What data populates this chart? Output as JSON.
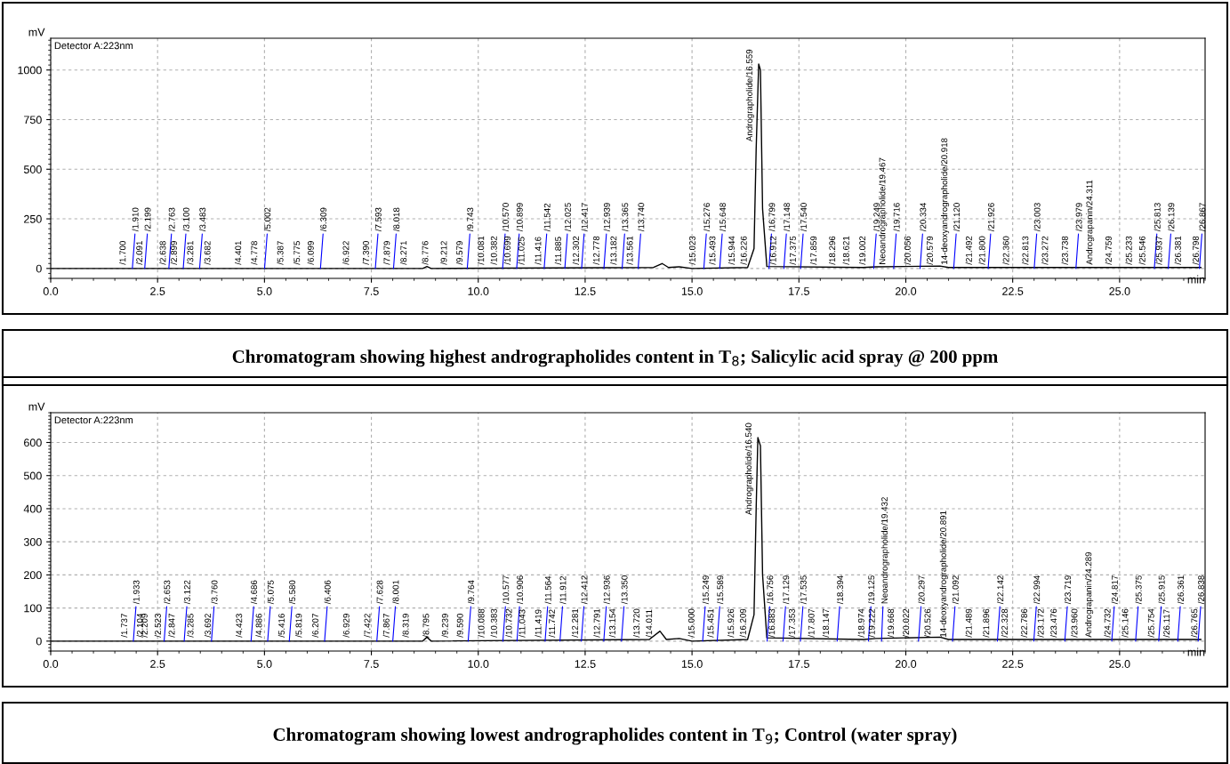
{
  "chart_data": [
    {
      "type": "line",
      "title": "Chromatogram showing highest andrographolides content in T$_{8}$; Salicylic acid spray @ 200 ppm",
      "xlabel": "min",
      "ylabel": "mV",
      "xlim": [
        0,
        27
      ],
      "xticks": [
        {
          "value": 0,
          "label": "0.0"
        },
        {
          "value": 2.5,
          "label": "2.5"
        },
        {
          "value": 5,
          "label": "5.0"
        },
        {
          "value": 7.5,
          "label": "7.5"
        },
        {
          "value": 10,
          "label": "10.0"
        },
        {
          "value": 12.5,
          "label": "12.5"
        },
        {
          "value": 15,
          "label": "15.0"
        },
        {
          "value": 17.5,
          "label": "17.5"
        },
        {
          "value": 20,
          "label": "20.0"
        },
        {
          "value": 22.5,
          "label": "22.5"
        },
        {
          "value": 25,
          "label": "25.0"
        }
      ],
      "ylim": [
        -50,
        1160
      ],
      "yticks": [
        0,
        250,
        500,
        750,
        1000
      ],
      "grid": true,
      "legend": false,
      "marker": "none",
      "line_style": "solid",
      "series": [
        {
          "color": "#000000",
          "x": [
            0,
            1.5,
            8.7,
            8.8,
            8.9,
            14.1,
            14.3,
            14.45,
            14.7,
            15.0,
            16.3,
            16.45,
            16.5,
            16.559,
            16.6,
            16.65,
            16.75,
            19.0,
            19.3,
            20.8,
            21.0,
            26.9
          ],
          "values": [
            0,
            0,
            0,
            10,
            0,
            5,
            25,
            5,
            8,
            0,
            5,
            100,
            600,
            1030,
            1000,
            300,
            10,
            5,
            8,
            12,
            5,
            5
          ]
        }
      ],
      "annotations": [
        "Detector A:223nm",
        {
          "text": "/1.700",
          "x": 1.7,
          "y": 0
        },
        {
          "text": "/1.910",
          "x": 1.91,
          "y": 0
        },
        {
          "text": "/2.091",
          "x": 2.091,
          "y": 0
        },
        {
          "text": "/2.199",
          "x": 2.199,
          "y": 0
        },
        {
          "text": "/2.638",
          "x": 2.638,
          "y": 0
        },
        {
          "text": "/2.763",
          "x": 2.763,
          "y": 0
        },
        {
          "text": "/2.899",
          "x": 2.899,
          "y": 0
        },
        {
          "text": "/3.100",
          "x": 3.1,
          "y": 0
        },
        {
          "text": "/3.281",
          "x": 3.281,
          "y": 0
        },
        {
          "text": "/3.483",
          "x": 3.483,
          "y": 0
        },
        {
          "text": "/3.682",
          "x": 3.682,
          "y": 0
        },
        {
          "text": "/4.401",
          "x": 4.401,
          "y": 0
        },
        {
          "text": "/4.778",
          "x": 4.778,
          "y": 0
        },
        {
          "text": "/5.002",
          "x": 5.002,
          "y": 0
        },
        {
          "text": "/5.387",
          "x": 5.387,
          "y": 0
        },
        {
          "text": "/5.775",
          "x": 5.775,
          "y": 0
        },
        {
          "text": "/6.099",
          "x": 6.099,
          "y": 0
        },
        {
          "text": "/6.309",
          "x": 6.309,
          "y": 0
        },
        {
          "text": "/6.922",
          "x": 6.922,
          "y": 0
        },
        {
          "text": "/7.390",
          "x": 7.39,
          "y": 0
        },
        {
          "text": "/7.593",
          "x": 7.593,
          "y": 0
        },
        {
          "text": "/7.879",
          "x": 7.879,
          "y": 0
        },
        {
          "text": "/8.018",
          "x": 8.018,
          "y": 0
        },
        {
          "text": "/8.271",
          "x": 8.271,
          "y": 0
        },
        {
          "text": "/8.776",
          "x": 8.776,
          "y": 0
        },
        {
          "text": "/9.212",
          "x": 9.212,
          "y": 0
        },
        {
          "text": "/9.579",
          "x": 9.579,
          "y": 0
        },
        {
          "text": "/9.743",
          "x": 9.743,
          "y": 0
        },
        {
          "text": "/10.081",
          "x": 10.081,
          "y": 0
        },
        {
          "text": "/10.382",
          "x": 10.382,
          "y": 0
        },
        {
          "text": "/10.570",
          "x": 10.57,
          "y": 0
        },
        {
          "text": "/10.699",
          "x": 10.699,
          "y": 0
        },
        {
          "text": "/10.899",
          "x": 10.899,
          "y": 0
        },
        {
          "text": "/11.025",
          "x": 11.025,
          "y": 0
        },
        {
          "text": "/11.416",
          "x": 11.416,
          "y": 0
        },
        {
          "text": "/11.542",
          "x": 11.542,
          "y": 0
        },
        {
          "text": "/11.885",
          "x": 11.885,
          "y": 0
        },
        {
          "text": "/12.025",
          "x": 12.025,
          "y": 0
        },
        {
          "text": "/12.302",
          "x": 12.302,
          "y": 0
        },
        {
          "text": "/12.417",
          "x": 12.417,
          "y": 0
        },
        {
          "text": "/12.778",
          "x": 12.778,
          "y": 0
        },
        {
          "text": "/12.939",
          "x": 12.939,
          "y": 0
        },
        {
          "text": "/13.182",
          "x": 13.182,
          "y": 0
        },
        {
          "text": "/13.365",
          "x": 13.365,
          "y": 0
        },
        {
          "text": "/13.561",
          "x": 13.561,
          "y": 0
        },
        {
          "text": "/13.740",
          "x": 13.74,
          "y": 0
        },
        {
          "text": "/15.023",
          "x": 15.023,
          "y": 0
        },
        {
          "text": "/15.276",
          "x": 15.276,
          "y": 0
        },
        {
          "text": "/15.493",
          "x": 15.493,
          "y": 0
        },
        {
          "text": "/15.648",
          "x": 15.648,
          "y": 0
        },
        {
          "text": "/15.944",
          "x": 15.944,
          "y": 0
        },
        {
          "text": "/16.226",
          "x": 16.226,
          "y": 0
        },
        {
          "text": "Andrographolide/16.559",
          "x": 16.559,
          "y": 1030
        },
        {
          "text": "/16.799",
          "x": 16.799,
          "y": 0
        },
        {
          "text": "/16.912",
          "x": 16.912,
          "y": 0
        },
        {
          "text": "/17.148",
          "x": 17.148,
          "y": 0
        },
        {
          "text": "/17.375",
          "x": 17.375,
          "y": 0
        },
        {
          "text": "/17.540",
          "x": 17.54,
          "y": 0
        },
        {
          "text": "/17.859",
          "x": 17.859,
          "y": 0
        },
        {
          "text": "/18.296",
          "x": 18.296,
          "y": 0
        },
        {
          "text": "/18.621",
          "x": 18.621,
          "y": 0
        },
        {
          "text": "/19.002",
          "x": 19.002,
          "y": 0
        },
        {
          "text": "/19.249",
          "x": 19.249,
          "y": 0
        },
        {
          "text": "Neoandrographolide/19.467",
          "x": 19.467,
          "y": 0
        },
        {
          "text": "/19.716",
          "x": 19.716,
          "y": 0
        },
        {
          "text": "/20.056",
          "x": 20.056,
          "y": 0
        },
        {
          "text": "/20.334",
          "x": 20.334,
          "y": 0
        },
        {
          "text": "/20.579",
          "x": 20.579,
          "y": 0
        },
        {
          "text": "14-deoxyandrographolide/20.918",
          "x": 20.918,
          "y": 0
        },
        {
          "text": "/21.120",
          "x": 21.12,
          "y": 0
        },
        {
          "text": "/21.492",
          "x": 21.492,
          "y": 0
        },
        {
          "text": "/21.800",
          "x": 21.8,
          "y": 0
        },
        {
          "text": "/21.926",
          "x": 21.926,
          "y": 0
        },
        {
          "text": "/22.360",
          "x": 22.36,
          "y": 0
        },
        {
          "text": "/22.813",
          "x": 22.813,
          "y": 0
        },
        {
          "text": "/23.003",
          "x": 23.003,
          "y": 0
        },
        {
          "text": "/23.272",
          "x": 23.272,
          "y": 0
        },
        {
          "text": "/23.738",
          "x": 23.738,
          "y": 0
        },
        {
          "text": "/23.979",
          "x": 23.979,
          "y": 0
        },
        {
          "text": "Andrograpanin/24.311",
          "x": 24.311,
          "y": 0
        },
        {
          "text": "/24.759",
          "x": 24.759,
          "y": 0
        },
        {
          "text": "/25.233",
          "x": 25.233,
          "y": 0
        },
        {
          "text": "/25.546",
          "x": 25.546,
          "y": 0
        },
        {
          "text": "/25.813",
          "x": 25.813,
          "y": 0
        },
        {
          "text": "/25.937",
          "x": 25.937,
          "y": 0
        },
        {
          "text": "/26.139",
          "x": 26.139,
          "y": 0
        },
        {
          "text": "/26.381",
          "x": 26.381,
          "y": 0
        },
        {
          "text": "/26.798",
          "x": 26.798,
          "y": 0
        },
        {
          "text": "/26.867",
          "x": 26.867,
          "y": 0
        }
      ]
    },
    {
      "type": "line",
      "title": "Chromatogram showing lowest andrographolides content in T$_{9}$; Control (water spray)",
      "xlabel": "min",
      "ylabel": "mV",
      "xlim": [
        0,
        27
      ],
      "xticks": [
        {
          "value": 0,
          "label": "0.0"
        },
        {
          "value": 2.5,
          "label": "2.5"
        },
        {
          "value": 5,
          "label": "5.0"
        },
        {
          "value": 7.5,
          "label": "7.5"
        },
        {
          "value": 10,
          "label": "10.0"
        },
        {
          "value": 12.5,
          "label": "12.5"
        },
        {
          "value": 15,
          "label": "15.0"
        },
        {
          "value": 17.5,
          "label": "17.5"
        },
        {
          "value": 20,
          "label": "20.0"
        },
        {
          "value": 22.5,
          "label": "22.5"
        },
        {
          "value": 25,
          "label": "25.0"
        }
      ],
      "ylim": [
        -30,
        690
      ],
      "yticks": [
        0,
        100,
        200,
        300,
        400,
        500,
        600
      ],
      "grid": true,
      "legend": false,
      "marker": "none",
      "line_style": "solid",
      "series": [
        {
          "color": "#000000",
          "x": [
            0,
            1.5,
            8.7,
            8.8,
            8.9,
            14.0,
            14.25,
            14.4,
            14.7,
            15.0,
            16.3,
            16.45,
            16.5,
            16.54,
            16.6,
            16.65,
            16.75,
            19.0,
            19.3,
            20.8,
            21.0,
            26.9
          ],
          "values": [
            0,
            0,
            0,
            12,
            0,
            5,
            30,
            5,
            8,
            0,
            5,
            80,
            400,
            615,
            590,
            200,
            10,
            5,
            8,
            12,
            5,
            5
          ]
        }
      ],
      "annotations": [
        "Detector A:223nm",
        {
          "text": "/1.737",
          "x": 1.737,
          "y": 0
        },
        {
          "text": "/1.933",
          "x": 1.933,
          "y": 0
        },
        {
          "text": "/2.104",
          "x": 2.104,
          "y": 0
        },
        {
          "text": "/2.209",
          "x": 2.209,
          "y": 0
        },
        {
          "text": "/2.523",
          "x": 2.523,
          "y": 0
        },
        {
          "text": "/2.653",
          "x": 2.653,
          "y": 0
        },
        {
          "text": "/2.847",
          "x": 2.847,
          "y": 0
        },
        {
          "text": "/3.122",
          "x": 3.122,
          "y": 0
        },
        {
          "text": "/3.285",
          "x": 3.285,
          "y": 0
        },
        {
          "text": "/3.692",
          "x": 3.692,
          "y": 0
        },
        {
          "text": "/3.760",
          "x": 3.76,
          "y": 0
        },
        {
          "text": "/4.423",
          "x": 4.423,
          "y": 0
        },
        {
          "text": "/4.686",
          "x": 4.686,
          "y": 0
        },
        {
          "text": "/4.886",
          "x": 4.886,
          "y": 0
        },
        {
          "text": "/5.075",
          "x": 5.075,
          "y": 0
        },
        {
          "text": "/5.416",
          "x": 5.416,
          "y": 0
        },
        {
          "text": "/5.580",
          "x": 5.58,
          "y": 0
        },
        {
          "text": "/5.819",
          "x": 5.819,
          "y": 0
        },
        {
          "text": "/6.207",
          "x": 6.207,
          "y": 0
        },
        {
          "text": "/6.406",
          "x": 6.406,
          "y": 0
        },
        {
          "text": "/6.929",
          "x": 6.929,
          "y": 0
        },
        {
          "text": "/7.422",
          "x": 7.422,
          "y": 0
        },
        {
          "text": "/7.628",
          "x": 7.628,
          "y": 0
        },
        {
          "text": "/7.867",
          "x": 7.867,
          "y": 0
        },
        {
          "text": "/8.001",
          "x": 8.001,
          "y": 0
        },
        {
          "text": "/8.319",
          "x": 8.319,
          "y": 0
        },
        {
          "text": "/8.795",
          "x": 8.795,
          "y": 0
        },
        {
          "text": "/9.239",
          "x": 9.239,
          "y": 0
        },
        {
          "text": "/9.590",
          "x": 9.59,
          "y": 0
        },
        {
          "text": "/9.764",
          "x": 9.764,
          "y": 0
        },
        {
          "text": "/10.088",
          "x": 10.088,
          "y": 0
        },
        {
          "text": "/10.383",
          "x": 10.383,
          "y": 0
        },
        {
          "text": "/10.577",
          "x": 10.577,
          "y": 0
        },
        {
          "text": "/10.732",
          "x": 10.732,
          "y": 0
        },
        {
          "text": "/10.906",
          "x": 10.906,
          "y": 0
        },
        {
          "text": "/11.043",
          "x": 11.043,
          "y": 0
        },
        {
          "text": "/11.419",
          "x": 11.419,
          "y": 0
        },
        {
          "text": "/11.564",
          "x": 11.564,
          "y": 0
        },
        {
          "text": "/11.742",
          "x": 11.742,
          "y": 0
        },
        {
          "text": "/11.912",
          "x": 11.912,
          "y": 0
        },
        {
          "text": "/12.281",
          "x": 12.281,
          "y": 0
        },
        {
          "text": "/12.412",
          "x": 12.412,
          "y": 0
        },
        {
          "text": "/12.791",
          "x": 12.791,
          "y": 0
        },
        {
          "text": "/12.936",
          "x": 12.936,
          "y": 0
        },
        {
          "text": "/13.154",
          "x": 13.154,
          "y": 0
        },
        {
          "text": "/13.350",
          "x": 13.35,
          "y": 0
        },
        {
          "text": "/13.720",
          "x": 13.72,
          "y": 0
        },
        {
          "text": "/14.011",
          "x": 14.011,
          "y": 0
        },
        {
          "text": "/15.000",
          "x": 15.0,
          "y": 0
        },
        {
          "text": "/15.249",
          "x": 15.249,
          "y": 0
        },
        {
          "text": "/15.451",
          "x": 15.451,
          "y": 0
        },
        {
          "text": "/15.589",
          "x": 15.589,
          "y": 0
        },
        {
          "text": "/15.926",
          "x": 15.926,
          "y": 0
        },
        {
          "text": "/16.209",
          "x": 16.209,
          "y": 0
        },
        {
          "text": "Andrographolide/16.540",
          "x": 16.54,
          "y": 615
        },
        {
          "text": "/16.756",
          "x": 16.756,
          "y": 0
        },
        {
          "text": "/16.883",
          "x": 16.883,
          "y": 0
        },
        {
          "text": "/17.129",
          "x": 17.129,
          "y": 0
        },
        {
          "text": "/17.353",
          "x": 17.353,
          "y": 0
        },
        {
          "text": "/17.535",
          "x": 17.535,
          "y": 0
        },
        {
          "text": "/17.807",
          "x": 17.807,
          "y": 0
        },
        {
          "text": "/18.147",
          "x": 18.147,
          "y": 0
        },
        {
          "text": "/18.394",
          "x": 18.394,
          "y": 0
        },
        {
          "text": "/18.974",
          "x": 18.974,
          "y": 0
        },
        {
          "text": "/19.125",
          "x": 19.125,
          "y": 0
        },
        {
          "text": "/19.222",
          "x": 19.222,
          "y": 0
        },
        {
          "text": "Neoandrographolide/19.432",
          "x": 19.432,
          "y": 0
        },
        {
          "text": "/19.668",
          "x": 19.668,
          "y": 0
        },
        {
          "text": "/20.022",
          "x": 20.022,
          "y": 0
        },
        {
          "text": "/20.297",
          "x": 20.297,
          "y": 0
        },
        {
          "text": "/20.526",
          "x": 20.526,
          "y": 0
        },
        {
          "text": "14-deoxyandrographolide/20.891",
          "x": 20.891,
          "y": 0
        },
        {
          "text": "/21.092",
          "x": 21.092,
          "y": 0
        },
        {
          "text": "/21.489",
          "x": 21.489,
          "y": 0
        },
        {
          "text": "/21.896",
          "x": 21.896,
          "y": 0
        },
        {
          "text": "/22.142",
          "x": 22.142,
          "y": 0
        },
        {
          "text": "/22.328",
          "x": 22.328,
          "y": 0
        },
        {
          "text": "/22.786",
          "x": 22.786,
          "y": 0
        },
        {
          "text": "/22.994",
          "x": 22.994,
          "y": 0
        },
        {
          "text": "/23.172",
          "x": 23.172,
          "y": 0
        },
        {
          "text": "/23.476",
          "x": 23.476,
          "y": 0
        },
        {
          "text": "/23.719",
          "x": 23.719,
          "y": 0
        },
        {
          "text": "/23.960",
          "x": 23.96,
          "y": 0
        },
        {
          "text": "Andrograpanin/24.289",
          "x": 24.289,
          "y": 0
        },
        {
          "text": "/24.732",
          "x": 24.732,
          "y": 0
        },
        {
          "text": "/24.817",
          "x": 24.817,
          "y": 0
        },
        {
          "text": "/25.146",
          "x": 25.146,
          "y": 0
        },
        {
          "text": "/25.375",
          "x": 25.375,
          "y": 0
        },
        {
          "text": "/25.754",
          "x": 25.754,
          "y": 0
        },
        {
          "text": "/25.915",
          "x": 25.915,
          "y": 0
        },
        {
          "text": "/26.117",
          "x": 26.117,
          "y": 0
        },
        {
          "text": "/26.361",
          "x": 26.361,
          "y": 0
        },
        {
          "text": "/26.765",
          "x": 26.765,
          "y": 0
        },
        {
          "text": "/26.838",
          "x": 26.838,
          "y": 0
        }
      ]
    }
  ]
}
